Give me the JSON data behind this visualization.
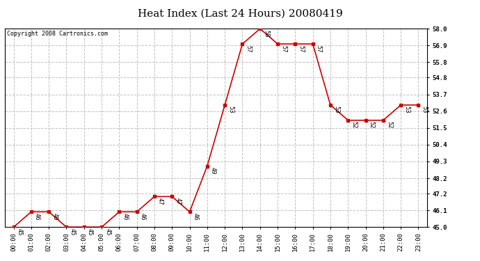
{
  "title": "Heat Index (Last 24 Hours) 20080419",
  "copyright": "Copyright 2008 Cartronics.com",
  "x_labels": [
    "00:00",
    "01:00",
    "02:00",
    "03:00",
    "04:00",
    "05:00",
    "06:00",
    "07:00",
    "08:00",
    "09:00",
    "10:00",
    "11:00",
    "12:00",
    "13:00",
    "14:00",
    "15:00",
    "16:00",
    "17:00",
    "18:00",
    "19:00",
    "20:00",
    "21:00",
    "22:00",
    "23:00"
  ],
  "y_values": [
    45,
    46,
    46,
    45,
    45,
    45,
    46,
    46,
    47,
    47,
    46,
    49,
    53,
    57,
    58,
    57,
    57,
    57,
    53,
    52,
    52,
    52,
    53,
    53
  ],
  "ylim_min": 45.0,
  "ylim_max": 58.0,
  "yticks": [
    45.0,
    46.1,
    47.2,
    48.2,
    49.3,
    50.4,
    51.5,
    52.6,
    53.7,
    54.8,
    55.8,
    56.9,
    58.0
  ],
  "line_color": "#cc0000",
  "marker_color": "#cc0000",
  "bg_color": "#ffffff",
  "plot_bg_color": "#ffffff",
  "grid_color": "#c0c0c0",
  "title_fontsize": 11,
  "label_fontsize": 6.0,
  "tick_fontsize": 6.5,
  "copyright_fontsize": 6.0
}
